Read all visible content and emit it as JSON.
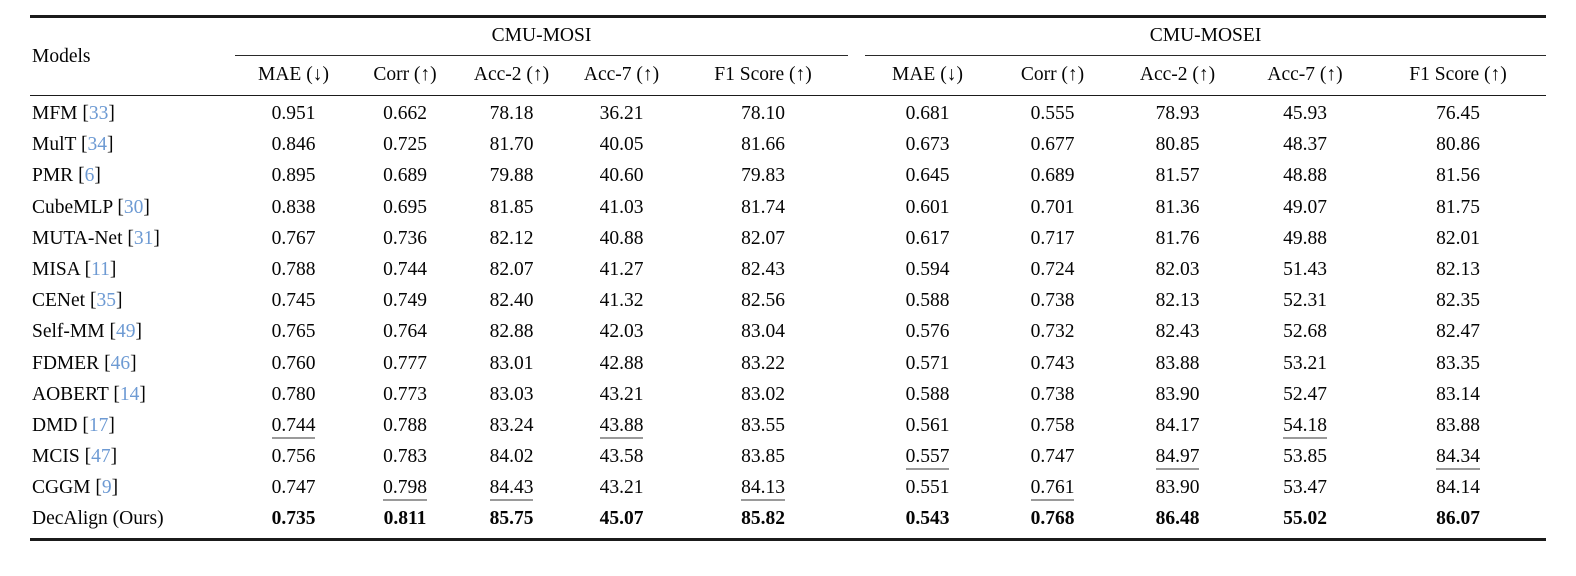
{
  "table": {
    "models_header": "Models",
    "group_headers": [
      "CMU-MOSI",
      "CMU-MOSEI"
    ],
    "metric_headers": [
      "MAE (↓)",
      "Corr (↑)",
      "Acc-2 (↑)",
      "Acc-7 (↑)",
      "F1 Score (↑)"
    ],
    "colors": {
      "citation_blue": "#6d9ad3",
      "rule_dark": "#1b1b1b",
      "underline_gray": "#9a9a9a"
    },
    "rows": [
      {
        "model": "MFM",
        "cite": "33",
        "values": [
          "0.951",
          "0.662",
          "78.18",
          "36.21",
          "78.10",
          "0.681",
          "0.555",
          "78.93",
          "45.93",
          "76.45"
        ],
        "styles": [
          "",
          "",
          "",
          "",
          "",
          "",
          "",
          "",
          "",
          ""
        ]
      },
      {
        "model": "MulT",
        "cite": "34",
        "values": [
          "0.846",
          "0.725",
          "81.70",
          "40.05",
          "81.66",
          "0.673",
          "0.677",
          "80.85",
          "48.37",
          "80.86"
        ],
        "styles": [
          "",
          "",
          "",
          "",
          "",
          "",
          "",
          "",
          "",
          ""
        ]
      },
      {
        "model": "PMR",
        "cite": "6",
        "values": [
          "0.895",
          "0.689",
          "79.88",
          "40.60",
          "79.83",
          "0.645",
          "0.689",
          "81.57",
          "48.88",
          "81.56"
        ],
        "styles": [
          "",
          "",
          "",
          "",
          "",
          "",
          "",
          "",
          "",
          ""
        ]
      },
      {
        "model": "CubeMLP",
        "cite": "30",
        "values": [
          "0.838",
          "0.695",
          "81.85",
          "41.03",
          "81.74",
          "0.601",
          "0.701",
          "81.36",
          "49.07",
          "81.75"
        ],
        "styles": [
          "",
          "",
          "",
          "",
          "",
          "",
          "",
          "",
          "",
          ""
        ]
      },
      {
        "model": "MUTA-Net",
        "cite": "31",
        "values": [
          "0.767",
          "0.736",
          "82.12",
          "40.88",
          "82.07",
          "0.617",
          "0.717",
          "81.76",
          "49.88",
          "82.01"
        ],
        "styles": [
          "",
          "",
          "",
          "",
          "",
          "",
          "",
          "",
          "",
          ""
        ]
      },
      {
        "model": "MISA",
        "cite": "11",
        "values": [
          "0.788",
          "0.744",
          "82.07",
          "41.27",
          "82.43",
          "0.594",
          "0.724",
          "82.03",
          "51.43",
          "82.13"
        ],
        "styles": [
          "",
          "",
          "",
          "",
          "",
          "",
          "",
          "",
          "",
          ""
        ]
      },
      {
        "model": "CENet",
        "cite": "35",
        "values": [
          "0.745",
          "0.749",
          "82.40",
          "41.32",
          "82.56",
          "0.588",
          "0.738",
          "82.13",
          "52.31",
          "82.35"
        ],
        "styles": [
          "",
          "",
          "",
          "",
          "",
          "",
          "",
          "",
          "",
          ""
        ]
      },
      {
        "model": "Self-MM",
        "cite": "49",
        "values": [
          "0.765",
          "0.764",
          "82.88",
          "42.03",
          "83.04",
          "0.576",
          "0.732",
          "82.43",
          "52.68",
          "82.47"
        ],
        "styles": [
          "",
          "",
          "",
          "",
          "",
          "",
          "",
          "",
          "",
          ""
        ]
      },
      {
        "model": "FDMER",
        "cite": "46",
        "values": [
          "0.760",
          "0.777",
          "83.01",
          "42.88",
          "83.22",
          "0.571",
          "0.743",
          "83.88",
          "53.21",
          "83.35"
        ],
        "styles": [
          "",
          "",
          "",
          "",
          "",
          "",
          "",
          "",
          "",
          ""
        ]
      },
      {
        "model": "AOBERT",
        "cite": "14",
        "values": [
          "0.780",
          "0.773",
          "83.03",
          "43.21",
          "83.02",
          "0.588",
          "0.738",
          "83.90",
          "52.47",
          "83.14"
        ],
        "styles": [
          "",
          "",
          "",
          "",
          "",
          "",
          "",
          "",
          "",
          ""
        ]
      },
      {
        "model": "DMD",
        "cite": "17",
        "values": [
          "0.744",
          "0.788",
          "83.24",
          "43.88",
          "83.55",
          "0.561",
          "0.758",
          "84.17",
          "54.18",
          "83.88"
        ],
        "styles": [
          "u",
          "",
          "",
          "u",
          "",
          "",
          "",
          "",
          "u",
          ""
        ]
      },
      {
        "model": "MCIS",
        "cite": "47",
        "values": [
          "0.756",
          "0.783",
          "84.02",
          "43.58",
          "83.85",
          "0.557",
          "0.747",
          "84.97",
          "53.85",
          "84.34"
        ],
        "styles": [
          "",
          "",
          "",
          "",
          "",
          "u",
          "",
          "u",
          "",
          "u"
        ]
      },
      {
        "model": "CGGM",
        "cite": "9",
        "values": [
          "0.747",
          "0.798",
          "84.43",
          "43.21",
          "84.13",
          "0.551",
          "0.761",
          "83.90",
          "53.47",
          "84.14"
        ],
        "styles": [
          "",
          "u",
          "u",
          "",
          "u",
          "",
          "u",
          "",
          "",
          ""
        ]
      },
      {
        "model": "DecAlign (Ours)",
        "cite": null,
        "values": [
          "0.735",
          "0.811",
          "85.75",
          "45.07",
          "85.82",
          "0.543",
          "0.768",
          "86.48",
          "55.02",
          "86.07"
        ],
        "styles": [
          "b",
          "b",
          "b",
          "b",
          "b",
          "b",
          "b",
          "b",
          "b",
          "b"
        ]
      }
    ]
  }
}
